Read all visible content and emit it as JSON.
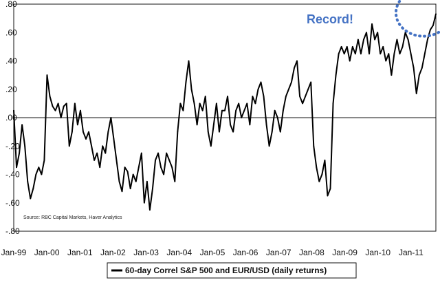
{
  "chart_data": {
    "type": "line",
    "title": "",
    "xlabel": "",
    "ylabel": "",
    "ylim": [
      -0.8,
      0.8
    ],
    "y_ticks": [
      0.8,
      0.6,
      0.4,
      0.2,
      0.0,
      -0.2,
      -0.4,
      -0.6,
      -0.8
    ],
    "y_tick_labels": [
      ".80",
      ".60",
      ".40",
      ".20",
      ".00",
      "-.20",
      "-.40",
      "-.60",
      "-.80"
    ],
    "x_range": [
      "1999-01",
      "2011-09"
    ],
    "x_tick_labels": [
      "Jan-99",
      "Jan-00",
      "Jan-01",
      "Jan-02",
      "Jan-03",
      "Jan-04",
      "Jan-05",
      "Jan-06",
      "Jan-07",
      "Jan-08",
      "Jan-09",
      "Jan-10",
      "Jan-11"
    ],
    "legend_position": "bottom",
    "grid": false,
    "annotation": {
      "text": "Record!",
      "color": "#4472c4",
      "x": "2011-08",
      "y": 0.7
    },
    "source": "Source: RBC Capital Markets, Haver Analytics",
    "series": [
      {
        "name": "60-day Correl S&P 500 and EUR/USD (daily returns)",
        "color": "#000000",
        "points": [
          [
            "1999-01",
            0.05
          ],
          [
            "1999-02",
            -0.35
          ],
          [
            "1999-03",
            -0.25
          ],
          [
            "1999-04",
            -0.05
          ],
          [
            "1999-05",
            -0.2
          ],
          [
            "1999-06",
            -0.45
          ],
          [
            "1999-07",
            -0.57
          ],
          [
            "1999-08",
            -0.5
          ],
          [
            "1999-09",
            -0.4
          ],
          [
            "1999-10",
            -0.35
          ],
          [
            "1999-11",
            -0.4
          ],
          [
            "1999-12",
            -0.3
          ],
          [
            "2000-01",
            0.3
          ],
          [
            "2000-02",
            0.15
          ],
          [
            "2000-03",
            0.08
          ],
          [
            "2000-04",
            0.05
          ],
          [
            "2000-05",
            0.1
          ],
          [
            "2000-06",
            0.0
          ],
          [
            "2000-07",
            0.08
          ],
          [
            "2000-08",
            0.1
          ],
          [
            "2000-09",
            -0.2
          ],
          [
            "2000-10",
            -0.1
          ],
          [
            "2000-11",
            0.1
          ],
          [
            "2000-12",
            -0.05
          ],
          [
            "2001-01",
            0.05
          ],
          [
            "2001-02",
            -0.1
          ],
          [
            "2001-03",
            -0.15
          ],
          [
            "2001-04",
            -0.1
          ],
          [
            "2001-05",
            -0.2
          ],
          [
            "2001-06",
            -0.3
          ],
          [
            "2001-07",
            -0.25
          ],
          [
            "2001-08",
            -0.35
          ],
          [
            "2001-09",
            -0.2
          ],
          [
            "2001-10",
            -0.25
          ],
          [
            "2001-11",
            -0.1
          ],
          [
            "2001-12",
            0.0
          ],
          [
            "2002-01",
            -0.15
          ],
          [
            "2002-02",
            -0.3
          ],
          [
            "2002-03",
            -0.45
          ],
          [
            "2002-04",
            -0.52
          ],
          [
            "2002-05",
            -0.35
          ],
          [
            "2002-06",
            -0.38
          ],
          [
            "2002-07",
            -0.5
          ],
          [
            "2002-08",
            -0.4
          ],
          [
            "2002-09",
            -0.45
          ],
          [
            "2002-10",
            -0.35
          ],
          [
            "2002-11",
            -0.25
          ],
          [
            "2002-12",
            -0.6
          ],
          [
            "2003-01",
            -0.45
          ],
          [
            "2003-02",
            -0.65
          ],
          [
            "2003-03",
            -0.5
          ],
          [
            "2003-04",
            -0.3
          ],
          [
            "2003-05",
            -0.25
          ],
          [
            "2003-06",
            -0.35
          ],
          [
            "2003-07",
            -0.4
          ],
          [
            "2003-08",
            -0.25
          ],
          [
            "2003-09",
            -0.3
          ],
          [
            "2003-10",
            -0.35
          ],
          [
            "2003-11",
            -0.45
          ],
          [
            "2003-12",
            -0.1
          ],
          [
            "2004-01",
            0.1
          ],
          [
            "2004-02",
            0.05
          ],
          [
            "2004-03",
            0.25
          ],
          [
            "2004-04",
            0.4
          ],
          [
            "2004-05",
            0.2
          ],
          [
            "2004-06",
            0.1
          ],
          [
            "2004-07",
            -0.05
          ],
          [
            "2004-08",
            0.1
          ],
          [
            "2004-09",
            0.05
          ],
          [
            "2004-10",
            0.15
          ],
          [
            "2004-11",
            -0.1
          ],
          [
            "2004-12",
            -0.2
          ],
          [
            "2005-01",
            -0.05
          ],
          [
            "2005-02",
            0.1
          ],
          [
            "2005-03",
            -0.1
          ],
          [
            "2005-04",
            0.05
          ],
          [
            "2005-05",
            0.05
          ],
          [
            "2005-06",
            0.15
          ],
          [
            "2005-07",
            -0.05
          ],
          [
            "2005-08",
            -0.1
          ],
          [
            "2005-09",
            0.05
          ],
          [
            "2005-10",
            0.1
          ],
          [
            "2005-11",
            0.0
          ],
          [
            "2005-12",
            0.05
          ],
          [
            "2006-01",
            0.1
          ],
          [
            "2006-02",
            -0.05
          ],
          [
            "2006-03",
            0.15
          ],
          [
            "2006-04",
            0.1
          ],
          [
            "2006-05",
            0.2
          ],
          [
            "2006-06",
            0.25
          ],
          [
            "2006-07",
            0.15
          ],
          [
            "2006-08",
            -0.05
          ],
          [
            "2006-09",
            -0.2
          ],
          [
            "2006-10",
            -0.1
          ],
          [
            "2006-11",
            0.05
          ],
          [
            "2006-12",
            0.0
          ],
          [
            "2007-01",
            -0.1
          ],
          [
            "2007-02",
            0.05
          ],
          [
            "2007-03",
            0.15
          ],
          [
            "2007-04",
            0.2
          ],
          [
            "2007-05",
            0.25
          ],
          [
            "2007-06",
            0.35
          ],
          [
            "2007-07",
            0.4
          ],
          [
            "2007-08",
            0.15
          ],
          [
            "2007-09",
            0.1
          ],
          [
            "2007-10",
            0.15
          ],
          [
            "2007-11",
            0.2
          ],
          [
            "2007-12",
            0.25
          ],
          [
            "2008-01",
            -0.2
          ],
          [
            "2008-02",
            -0.35
          ],
          [
            "2008-03",
            -0.45
          ],
          [
            "2008-04",
            -0.4
          ],
          [
            "2008-05",
            -0.3
          ],
          [
            "2008-06",
            -0.55
          ],
          [
            "2008-07",
            -0.5
          ],
          [
            "2008-08",
            0.1
          ],
          [
            "2008-09",
            0.3
          ],
          [
            "2008-10",
            0.45
          ],
          [
            "2008-11",
            0.5
          ],
          [
            "2008-12",
            0.45
          ],
          [
            "2009-01",
            0.5
          ],
          [
            "2009-02",
            0.4
          ],
          [
            "2009-03",
            0.5
          ],
          [
            "2009-04",
            0.45
          ],
          [
            "2009-05",
            0.55
          ],
          [
            "2009-06",
            0.45
          ],
          [
            "2009-07",
            0.55
          ],
          [
            "2009-08",
            0.6
          ],
          [
            "2009-09",
            0.45
          ],
          [
            "2009-10",
            0.66
          ],
          [
            "2009-11",
            0.55
          ],
          [
            "2009-12",
            0.6
          ],
          [
            "2010-01",
            0.45
          ],
          [
            "2010-02",
            0.5
          ],
          [
            "2010-03",
            0.4
          ],
          [
            "2010-04",
            0.45
          ],
          [
            "2010-05",
            0.3
          ],
          [
            "2010-06",
            0.45
          ],
          [
            "2010-07",
            0.55
          ],
          [
            "2010-08",
            0.45
          ],
          [
            "2010-09",
            0.5
          ],
          [
            "2010-10",
            0.6
          ],
          [
            "2010-11",
            0.55
          ],
          [
            "2010-12",
            0.45
          ],
          [
            "2011-01",
            0.35
          ],
          [
            "2011-02",
            0.17
          ],
          [
            "2011-03",
            0.3
          ],
          [
            "2011-04",
            0.35
          ],
          [
            "2011-05",
            0.45
          ],
          [
            "2011-06",
            0.55
          ],
          [
            "2011-07",
            0.62
          ],
          [
            "2011-08",
            0.65
          ],
          [
            "2011-09",
            0.73
          ]
        ]
      }
    ]
  }
}
